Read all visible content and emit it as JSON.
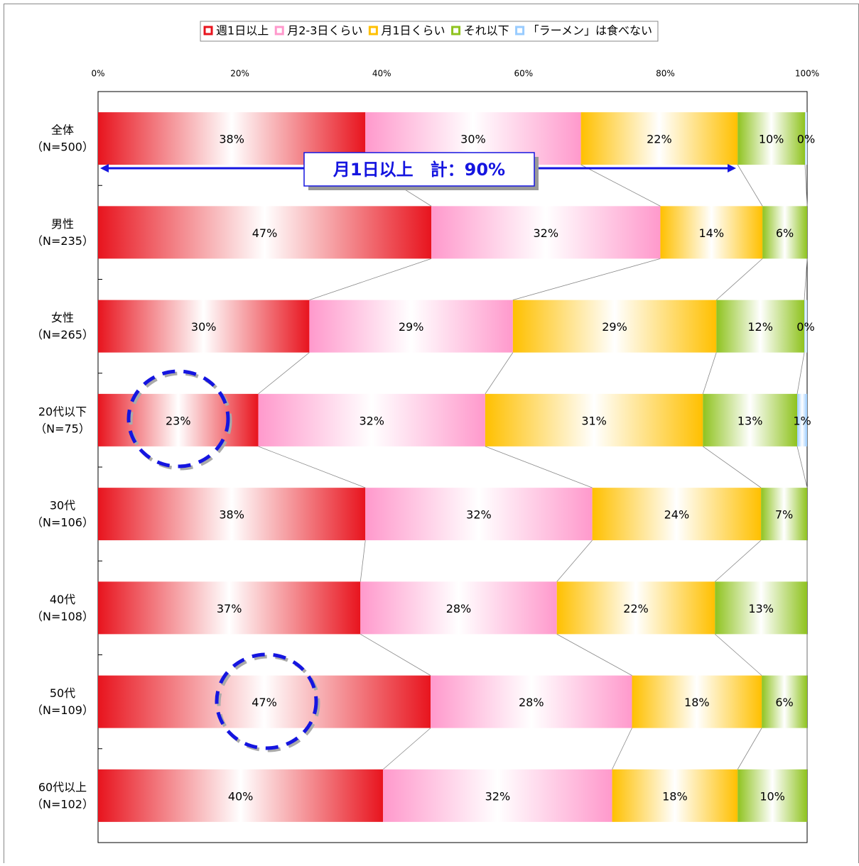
{
  "chart_data": {
    "type": "stacked_barh",
    "categories": [
      "全体",
      "男性",
      "女性",
      "20代以下",
      "30代",
      "40代",
      "50代",
      "60代以上"
    ],
    "category_notes": [
      "（N=500）",
      "（N=235）",
      "（N=265）",
      "（N=75）",
      "（N=106）",
      "（N=108）",
      "（N=109）",
      "（N=102）"
    ],
    "series": [
      {
        "name": "週1日以上",
        "color": "#e8141e",
        "values": [
          37.7,
          47.0,
          29.8,
          22.6,
          37.7,
          37.0,
          46.9,
          40.2
        ],
        "value_labels": [
          "38%",
          "47%",
          "30%",
          "23%",
          "38%",
          "37%",
          "47%",
          "40%"
        ]
      },
      {
        "name": "月2-3日くらい",
        "color": "#ff99cc",
        "values": [
          30.4,
          32.3,
          28.7,
          32.0,
          32.0,
          27.7,
          28.4,
          32.3
        ],
        "value_labels": [
          "30%",
          "32%",
          "29%",
          "32%",
          "32%",
          "28%",
          "28%",
          "32%"
        ]
      },
      {
        "name": "月1日くらい",
        "color": "#ffc000",
        "values": [
          22.1,
          14.4,
          28.7,
          30.7,
          23.8,
          22.3,
          18.3,
          17.7
        ],
        "value_labels": [
          "22%",
          "14%",
          "29%",
          "31%",
          "24%",
          "22%",
          "18%",
          "18%"
        ]
      },
      {
        "name": "それ以下",
        "color": "#8fc31f",
        "values": [
          9.5,
          6.3,
          12.4,
          13.3,
          6.5,
          13.0,
          6.4,
          9.8
        ],
        "value_labels": [
          "10%",
          "6%",
          "12%",
          "13%",
          "7%",
          "13%",
          "6%",
          "10%"
        ]
      },
      {
        "name": "「ラーメン」は食べない",
        "color": "#99ccff",
        "values": [
          0.3,
          0,
          0.4,
          1.4,
          0,
          0,
          0,
          0
        ],
        "value_labels": [
          "0%",
          null,
          "0%",
          "1%",
          null,
          null,
          null,
          null
        ]
      }
    ],
    "xlim": [
      0,
      100
    ],
    "xticks": [
      {
        "value": 0,
        "label": "0%"
      },
      {
        "value": 20,
        "label": "20%"
      },
      {
        "value": 40,
        "label": "40%"
      },
      {
        "value": 60,
        "label": "60%"
      },
      {
        "value": 80,
        "label": "80%"
      },
      {
        "value": 100,
        "label": "100%"
      }
    ],
    "legend": "top",
    "annotation": "月1日以上　計：90%"
  }
}
